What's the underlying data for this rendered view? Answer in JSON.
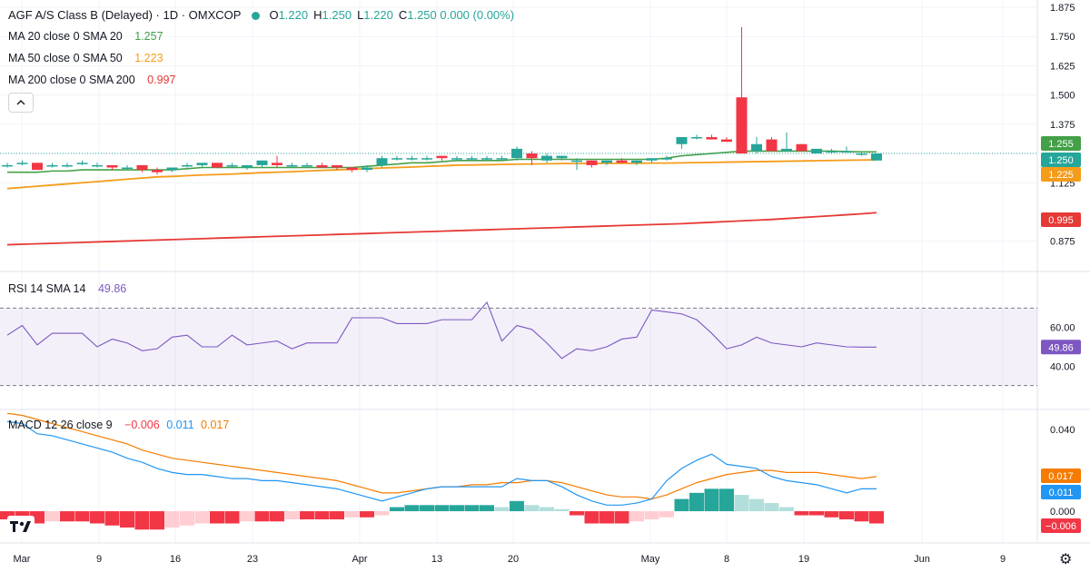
{
  "header": {
    "symbol": "AGF A/S Class B (Delayed) · 1D · OMXCOP",
    "o_label": "O",
    "o": "1.220",
    "h_label": "H",
    "h": "1.250",
    "l_label": "L",
    "l": "1.220",
    "c_label": "C",
    "c": "1.250 0.000 (0.00%)"
  },
  "indicators": {
    "ma20": {
      "label": "MA 20 close 0 SMA 20",
      "value": "1.257",
      "color": "#43a047"
    },
    "ma50": {
      "label": "MA 50 close 0 SMA 50",
      "value": "1.223",
      "color": "#f59c1a"
    },
    "ma200": {
      "label": "MA 200 close 0 SMA 200",
      "value": "0.997",
      "color": "#e53935"
    },
    "rsi": {
      "label": "RSI 14 SMA 14",
      "value": "49.86",
      "color": "#7e57c2"
    },
    "macd": {
      "label": "MACD 12 26 close 9",
      "hist": "−0.006",
      "macd": "0.011",
      "signal": "0.017",
      "hist_color": "#f23645",
      "macd_color": "#2196f3",
      "signal_color": "#f57c00"
    }
  },
  "colors": {
    "up": "#26a69a",
    "down": "#f23645",
    "up_light": "#b2dfdb",
    "down_light": "#ffcdd2",
    "grid": "#f0f3fa"
  },
  "chart_data": [
    {
      "type": "candlestick",
      "ylim": [
        0.8,
        1.875
      ],
      "yticks": [
        "1.875",
        "1.750",
        "1.625",
        "1.500",
        "1.375",
        "1.125",
        "0.875"
      ],
      "ytick_values": [
        1.875,
        1.75,
        1.625,
        1.5,
        1.375,
        1.125,
        0.875
      ],
      "xticks": [
        "Mar",
        "9",
        "16",
        "23",
        "Apr",
        "13",
        "20",
        "May",
        "8",
        "19",
        "Jun",
        "9"
      ],
      "price_tags": [
        {
          "text": "1.255",
          "value": 1.255,
          "color": "#43a047"
        },
        {
          "text": "1.250",
          "value": 1.25,
          "color": "#26a69a"
        },
        {
          "text": "1.225",
          "value": 1.225,
          "color": "#f59c1a"
        },
        {
          "text": "0.995",
          "value": 0.995,
          "color": "#e53935"
        }
      ],
      "candles": [
        [
          1.2,
          1.21,
          1.19,
          1.2
        ],
        [
          1.21,
          1.22,
          1.2,
          1.21
        ],
        [
          1.21,
          1.21,
          1.18,
          1.18
        ],
        [
          1.2,
          1.21,
          1.19,
          1.2
        ],
        [
          1.2,
          1.21,
          1.19,
          1.2
        ],
        [
          1.21,
          1.22,
          1.2,
          1.21
        ],
        [
          1.2,
          1.21,
          1.19,
          1.2
        ],
        [
          1.2,
          1.2,
          1.18,
          1.19
        ],
        [
          1.19,
          1.2,
          1.18,
          1.19
        ],
        [
          1.2,
          1.2,
          1.17,
          1.18
        ],
        [
          1.18,
          1.19,
          1.16,
          1.17
        ],
        [
          1.18,
          1.19,
          1.17,
          1.19
        ],
        [
          1.2,
          1.21,
          1.19,
          1.2
        ],
        [
          1.2,
          1.21,
          1.19,
          1.21
        ],
        [
          1.21,
          1.21,
          1.19,
          1.19
        ],
        [
          1.2,
          1.21,
          1.19,
          1.2
        ],
        [
          1.19,
          1.2,
          1.18,
          1.2
        ],
        [
          1.2,
          1.21,
          1.19,
          1.22
        ],
        [
          1.21,
          1.24,
          1.19,
          1.2
        ],
        [
          1.2,
          1.21,
          1.19,
          1.2
        ],
        [
          1.2,
          1.21,
          1.19,
          1.2
        ],
        [
          1.2,
          1.21,
          1.19,
          1.19
        ],
        [
          1.2,
          1.2,
          1.18,
          1.19
        ],
        [
          1.19,
          1.19,
          1.17,
          1.18
        ],
        [
          1.18,
          1.2,
          1.17,
          1.19
        ],
        [
          1.2,
          1.24,
          1.19,
          1.23
        ],
        [
          1.23,
          1.24,
          1.22,
          1.23
        ],
        [
          1.23,
          1.24,
          1.22,
          1.23
        ],
        [
          1.23,
          1.24,
          1.22,
          1.23
        ],
        [
          1.24,
          1.24,
          1.22,
          1.23
        ],
        [
          1.23,
          1.24,
          1.22,
          1.23
        ],
        [
          1.23,
          1.24,
          1.22,
          1.23
        ],
        [
          1.23,
          1.24,
          1.22,
          1.23
        ],
        [
          1.23,
          1.24,
          1.22,
          1.23
        ],
        [
          1.23,
          1.28,
          1.22,
          1.27
        ],
        [
          1.25,
          1.26,
          1.2,
          1.23
        ],
        [
          1.22,
          1.25,
          1.21,
          1.24
        ],
        [
          1.23,
          1.24,
          1.22,
          1.24
        ],
        [
          1.22,
          1.23,
          1.18,
          1.22
        ],
        [
          1.22,
          1.22,
          1.19,
          1.2
        ],
        [
          1.21,
          1.22,
          1.2,
          1.22
        ],
        [
          1.22,
          1.23,
          1.21,
          1.21
        ],
        [
          1.21,
          1.22,
          1.2,
          1.22
        ],
        [
          1.22,
          1.23,
          1.21,
          1.23
        ],
        [
          1.23,
          1.24,
          1.22,
          1.23
        ],
        [
          1.29,
          1.31,
          1.27,
          1.32
        ],
        [
          1.32,
          1.33,
          1.31,
          1.32
        ],
        [
          1.32,
          1.33,
          1.31,
          1.31
        ],
        [
          1.31,
          1.32,
          1.3,
          1.3
        ],
        [
          1.49,
          1.79,
          1.25,
          1.25
        ],
        [
          1.26,
          1.32,
          1.25,
          1.29
        ],
        [
          1.31,
          1.32,
          1.26,
          1.26
        ],
        [
          1.26,
          1.34,
          1.26,
          1.27
        ],
        [
          1.29,
          1.29,
          1.26,
          1.26
        ],
        [
          1.25,
          1.27,
          1.25,
          1.27
        ],
        [
          1.26,
          1.27,
          1.25,
          1.26
        ],
        [
          1.26,
          1.28,
          1.26,
          1.26
        ],
        [
          1.25,
          1.26,
          1.24,
          1.25
        ],
        [
          1.22,
          1.25,
          1.22,
          1.25
        ]
      ],
      "ma20": [
        1.17,
        1.17,
        1.17,
        1.175,
        1.175,
        1.18,
        1.18,
        1.18,
        1.18,
        1.18,
        1.18,
        1.18,
        1.185,
        1.19,
        1.19,
        1.19,
        1.19,
        1.19,
        1.19,
        1.19,
        1.19,
        1.19,
        1.19,
        1.19,
        1.195,
        1.2,
        1.205,
        1.21,
        1.21,
        1.215,
        1.22,
        1.22,
        1.22,
        1.22,
        1.225,
        1.225,
        1.225,
        1.225,
        1.225,
        1.225,
        1.225,
        1.225,
        1.225,
        1.225,
        1.23,
        1.24,
        1.245,
        1.25,
        1.255,
        1.26,
        1.26,
        1.26,
        1.26,
        1.26,
        1.26,
        1.26,
        1.258,
        1.257,
        1.257
      ],
      "ma50": [
        1.1,
        1.105,
        1.11,
        1.115,
        1.12,
        1.125,
        1.13,
        1.135,
        1.14,
        1.145,
        1.15,
        1.152,
        1.155,
        1.158,
        1.16,
        1.162,
        1.165,
        1.168,
        1.17,
        1.172,
        1.175,
        1.178,
        1.18,
        1.182,
        1.185,
        1.188,
        1.19,
        1.192,
        1.195,
        1.197,
        1.2,
        1.201,
        1.202,
        1.203,
        1.204,
        1.205,
        1.206,
        1.207,
        1.207,
        1.208,
        1.208,
        1.208,
        1.208,
        1.209,
        1.209,
        1.21,
        1.211,
        1.212,
        1.213,
        1.214,
        1.215,
        1.216,
        1.217,
        1.218,
        1.219,
        1.22,
        1.221,
        1.222,
        1.223
      ],
      "ma200": [
        0.86,
        0.862,
        0.864,
        0.866,
        0.868,
        0.87,
        0.872,
        0.874,
        0.876,
        0.878,
        0.88,
        0.882,
        0.884,
        0.886,
        0.888,
        0.89,
        0.892,
        0.894,
        0.896,
        0.898,
        0.9,
        0.902,
        0.904,
        0.906,
        0.908,
        0.91,
        0.912,
        0.914,
        0.916,
        0.918,
        0.92,
        0.922,
        0.924,
        0.926,
        0.928,
        0.93,
        0.932,
        0.934,
        0.936,
        0.938,
        0.94,
        0.942,
        0.944,
        0.946,
        0.948,
        0.95,
        0.953,
        0.956,
        0.959,
        0.962,
        0.965,
        0.968,
        0.972,
        0.976,
        0.98,
        0.984,
        0.988,
        0.992,
        0.997
      ]
    },
    {
      "type": "line",
      "name": "RSI",
      "ylim": [
        20,
        80
      ],
      "yticks": [
        "60.00",
        "40.00"
      ],
      "ytick_values": [
        60,
        40
      ],
      "bands": [
        70,
        30
      ],
      "tag": {
        "text": "49.86",
        "value": 49.86
      },
      "values": [
        56,
        61,
        51,
        57,
        57,
        57,
        50,
        54,
        52,
        48,
        49,
        55,
        56,
        50,
        50,
        56,
        51,
        52,
        53,
        49,
        52,
        52,
        52,
        65,
        65,
        65,
        62,
        62,
        62,
        64,
        64,
        64,
        73,
        53,
        61,
        59,
        52,
        44,
        49,
        48,
        50,
        54,
        55,
        69,
        68,
        67,
        64,
        57,
        49,
        51,
        55,
        52,
        51,
        50,
        52,
        51,
        50,
        49.86,
        49.86
      ]
    },
    {
      "type": "bar+line",
      "name": "MACD",
      "ylim": [
        -0.012,
        0.045
      ],
      "yticks": [
        "0.040",
        "0.000"
      ],
      "ytick_values": [
        0.04,
        0
      ],
      "tags": [
        {
          "text": "0.017",
          "value": 0.017,
          "color": "#f57c00"
        },
        {
          "text": "0.011",
          "value": 0.011,
          "color": "#2196f3"
        },
        {
          "text": "−0.006",
          "value": -0.006,
          "color": "#f23645"
        }
      ],
      "histogram": [
        -0.004,
        -0.005,
        -0.006,
        -0.005,
        -0.005,
        -0.005,
        -0.006,
        -0.007,
        -0.008,
        -0.009,
        -0.009,
        -0.008,
        -0.007,
        -0.006,
        -0.006,
        -0.006,
        -0.005,
        -0.005,
        -0.005,
        -0.004,
        -0.004,
        -0.004,
        -0.004,
        -0.003,
        -0.003,
        -0.002,
        0.002,
        0.003,
        0.003,
        0.003,
        0.003,
        0.003,
        0.003,
        0.002,
        0.005,
        0.003,
        0.002,
        0.001,
        -0.002,
        -0.006,
        -0.006,
        -0.006,
        -0.005,
        -0.004,
        -0.003,
        0.006,
        0.009,
        0.011,
        0.011,
        0.008,
        0.006,
        0.004,
        0.002,
        -0.002,
        -0.002,
        -0.003,
        -0.004,
        -0.005,
        -0.006
      ],
      "macd": [
        0.044,
        0.043,
        0.038,
        0.037,
        0.035,
        0.033,
        0.031,
        0.029,
        0.026,
        0.024,
        0.021,
        0.019,
        0.018,
        0.018,
        0.017,
        0.016,
        0.016,
        0.015,
        0.015,
        0.014,
        0.013,
        0.012,
        0.011,
        0.009,
        0.007,
        0.005,
        0.007,
        0.009,
        0.011,
        0.012,
        0.012,
        0.012,
        0.012,
        0.012,
        0.016,
        0.015,
        0.015,
        0.012,
        0.008,
        0.005,
        0.003,
        0.003,
        0.004,
        0.006,
        0.015,
        0.021,
        0.025,
        0.028,
        0.023,
        0.022,
        0.021,
        0.017,
        0.015,
        0.014,
        0.013,
        0.011,
        0.009,
        0.011,
        0.011
      ],
      "signal": [
        0.048,
        0.047,
        0.045,
        0.043,
        0.041,
        0.039,
        0.037,
        0.035,
        0.033,
        0.03,
        0.028,
        0.026,
        0.025,
        0.024,
        0.023,
        0.022,
        0.021,
        0.02,
        0.019,
        0.018,
        0.017,
        0.016,
        0.015,
        0.013,
        0.011,
        0.009,
        0.009,
        0.01,
        0.011,
        0.012,
        0.012,
        0.013,
        0.013,
        0.014,
        0.014,
        0.015,
        0.015,
        0.014,
        0.012,
        0.01,
        0.008,
        0.007,
        0.007,
        0.006,
        0.008,
        0.011,
        0.014,
        0.016,
        0.018,
        0.019,
        0.02,
        0.02,
        0.019,
        0.019,
        0.019,
        0.018,
        0.017,
        0.016,
        0.017
      ]
    }
  ]
}
